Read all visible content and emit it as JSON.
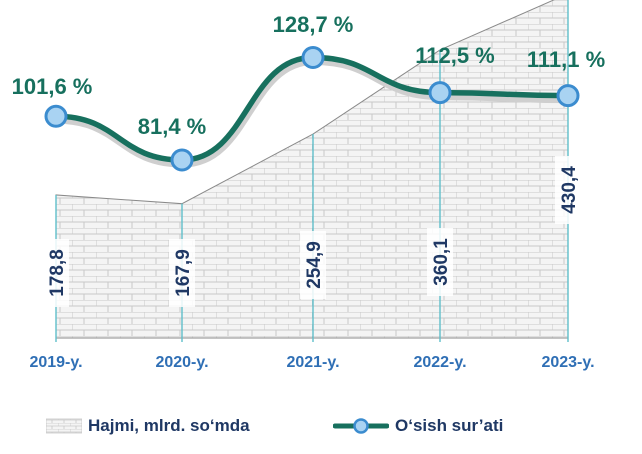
{
  "chart_data": {
    "type": "area+line",
    "categories": [
      "2019-y.",
      "2020-y.",
      "2021-y.",
      "2022-y.",
      "2023-y."
    ],
    "series": [
      {
        "name": "Hajmi, mlrd. so‘mda",
        "kind": "area",
        "values": [
          178.8,
          167.9,
          254.9,
          360.1,
          430.4
        ],
        "labels": [
          "178,8",
          "167,9",
          "254,9",
          "360,1",
          "430,4"
        ]
      },
      {
        "name": "O‘sish sur’ati",
        "kind": "line",
        "values": [
          101.6,
          81.4,
          128.7,
          112.5,
          111.1
        ],
        "labels": [
          "101,6 %",
          "81,4 %",
          "128,7 %",
          "112,5 %",
          "111,1 %"
        ]
      }
    ],
    "legend_position": "bottom",
    "grid": false
  },
  "colors": {
    "line": "#17705e",
    "marker_fill": "#a9d3f2",
    "marker_stroke": "#3b8ccf",
    "area_line": "#8a8a8a",
    "brick_fill": "#f4f4f4",
    "brick_mortar": "#c8c8c8",
    "category_text": "#2f6fb5",
    "value_text": "#1f3864",
    "percent_text": "#17705e",
    "tick_line": "#5fbfca"
  },
  "legend": {
    "area_label": "Hajmi, mlrd. so‘mda",
    "line_label": "O‘sish sur’ati"
  }
}
